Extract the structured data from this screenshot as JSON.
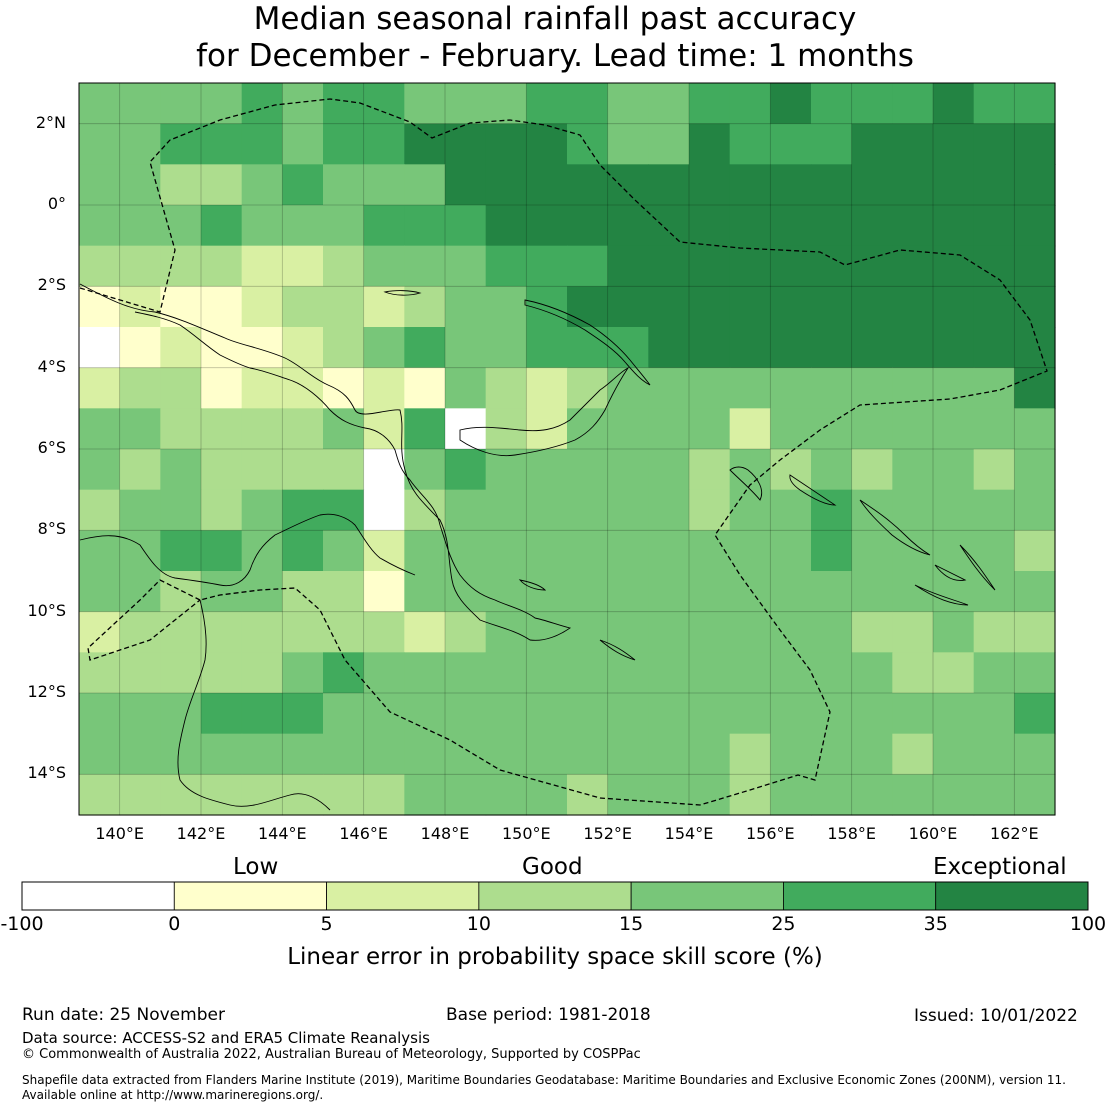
{
  "title": {
    "line1": "Median seasonal rainfall past accuracy",
    "line2": "for December - February. Lead time: 1 months"
  },
  "map": {
    "lon_range": [
      139,
      163
    ],
    "lat_range": [
      -15,
      3
    ],
    "lat_labels": [
      "2°N",
      "0°",
      "2°S",
      "4°S",
      "6°S",
      "8°S",
      "10°S",
      "12°S",
      "14°S"
    ],
    "lat_values": [
      2,
      0,
      -2,
      -4,
      -6,
      -8,
      -10,
      -12,
      -14
    ],
    "lon_labels": [
      "140°E",
      "142°E",
      "144°E",
      "146°E",
      "148°E",
      "150°E",
      "152°E",
      "154°E",
      "156°E",
      "158°E",
      "160°E",
      "162°E"
    ],
    "lon_values": [
      140,
      142,
      144,
      146,
      148,
      150,
      152,
      154,
      156,
      158,
      160,
      162
    ],
    "grid_cols": 24,
    "grid_rows": 18,
    "skill_category_grid": [
      "444454554445544556555655",
      "445554556666544655566666",
      "443345444666666666666666",
      "444544455566666666666666",
      "333322344455566666666666",
      "121123323445666666666666",
      "012112345445556666666666",
      "233122121432344444444446",
      "443333425032444424444444",
      "434333304544444343434434",
      "344345503444444344544444",
      "445545424444444444544443",
      "443443314444444444444444",
      "233333332344444444433433",
      "333334544444444444443344",
      "444555444444444444444445",
      "444444444444444434443444",
      "333333334444344434444444"
    ],
    "color_scale": [
      "#ffffff",
      "#ffffcc",
      "#d9f0a3",
      "#addd8e",
      "#78c679",
      "#41ab5d",
      "#238443"
    ]
  },
  "colorbar": {
    "categories": [
      "Low",
      "Good",
      "Exceptional"
    ],
    "ticks": [
      "-100",
      "0",
      "5",
      "10",
      "15",
      "25",
      "35",
      "100"
    ],
    "colors": [
      "#ffffff",
      "#ffffcc",
      "#d9f0a3",
      "#addd8e",
      "#78c679",
      "#41ab5d",
      "#238443"
    ],
    "label": "Linear error in probability space skill score (%)"
  },
  "footer": {
    "run_date": "Run date: 25 November",
    "base_period": "Base period: 1981-2018",
    "issued": "Issued: 10/01/2022",
    "data_source": "Data source: ACCESS-S2 and ERA5 Climate Reanalysis",
    "copyright": "© Commonwealth of Australia 2022, Australian Bureau of Meteorology, Supported by COSPPac",
    "shapefile_line1": "Shapefile data extracted from Flanders Marine Institute (2019), Maritime Boundaries Geodatabase: Maritime Boundaries and Exclusive Economic Zones (200NM), version 11.",
    "shapefile_line2": "Available online at http://www.marineregions.org/."
  }
}
